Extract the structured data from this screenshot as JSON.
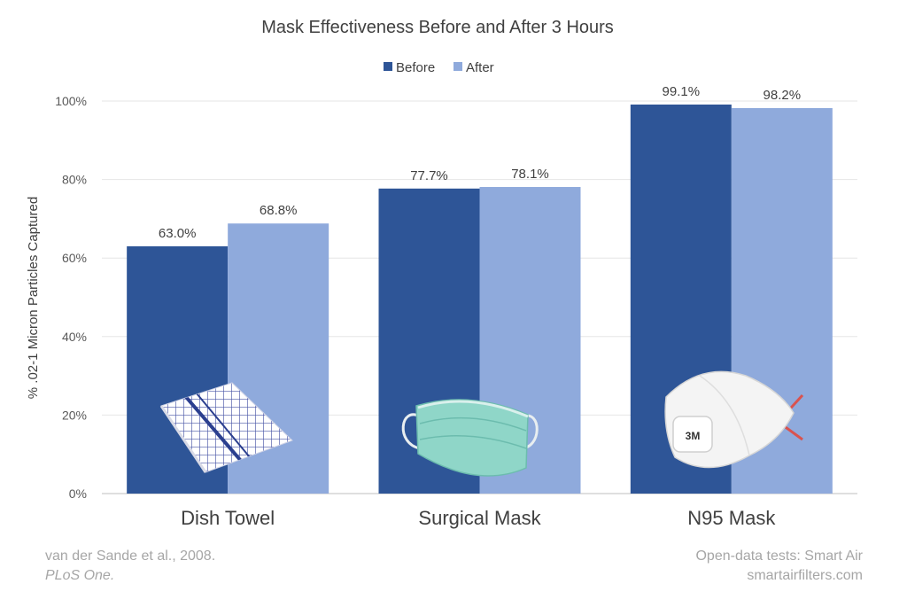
{
  "chart_data": {
    "type": "bar",
    "title": "Mask Effectiveness Before and After 3 Hours",
    "ylabel": "% .02-1 Micron Particles Captured",
    "xlabel": "",
    "ylim": [
      0,
      100
    ],
    "yticks": [
      "0%",
      "20%",
      "40%",
      "60%",
      "80%",
      "100%"
    ],
    "ytick_values": [
      0,
      20,
      40,
      60,
      80,
      100
    ],
    "grid": true,
    "legend_position": "top-center",
    "categories": [
      "Dish Towel",
      "Surgical Mask",
      "N95 Mask"
    ],
    "series": [
      {
        "name": "Before",
        "color": "#2e5597",
        "values": [
          63.0,
          77.7,
          99.1
        ],
        "labels": [
          "63.0%",
          "77.7%",
          "99.1%"
        ]
      },
      {
        "name": "After",
        "color": "#8faadc",
        "values": [
          68.8,
          78.1,
          98.2
        ],
        "labels": [
          "68.8%",
          "78.1%",
          "98.2%"
        ]
      }
    ],
    "images": [
      "dish-towel-photo",
      "surgical-mask-photo",
      "n95-mask-photo"
    ],
    "n95_logo": "3M"
  },
  "source": {
    "citation_line1": "van der Sande et al., 2008.",
    "citation_line2": "PLoS One.",
    "credit_line1": "Open-data tests: Smart Air",
    "credit_line2": "smartairfilters.com"
  }
}
